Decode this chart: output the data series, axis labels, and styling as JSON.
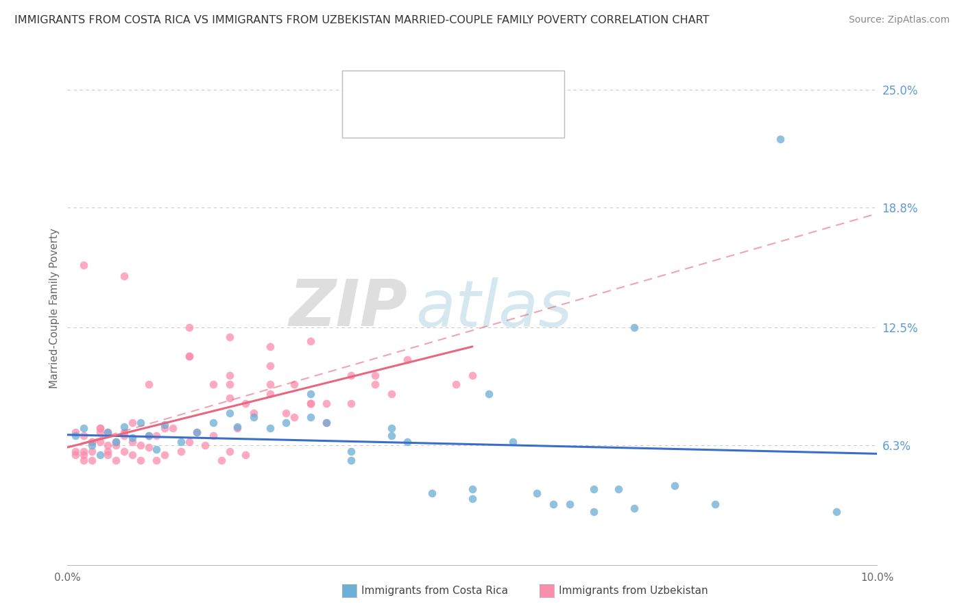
{
  "title": "IMMIGRANTS FROM COSTA RICA VS IMMIGRANTS FROM UZBEKISTAN MARRIED-COUPLE FAMILY POVERTY CORRELATION CHART",
  "source": "Source: ZipAtlas.com",
  "ylabel": "Married-Couple Family Poverty",
  "xlim": [
    0.0,
    0.1
  ],
  "ylim": [
    0.0,
    0.27
  ],
  "xtick_labels": [
    "0.0%",
    "10.0%"
  ],
  "ytick_labels": [
    "6.3%",
    "12.5%",
    "18.8%",
    "25.0%"
  ],
  "ytick_values": [
    0.063,
    0.125,
    0.188,
    0.25
  ],
  "color_blue": "#6BAED6",
  "color_pink": "#FC8DAC",
  "color_blue_line": "#3A6EC8",
  "color_pink_line": "#E86680",
  "watermark_zip": "ZIP",
  "watermark_atlas": "atlas"
}
